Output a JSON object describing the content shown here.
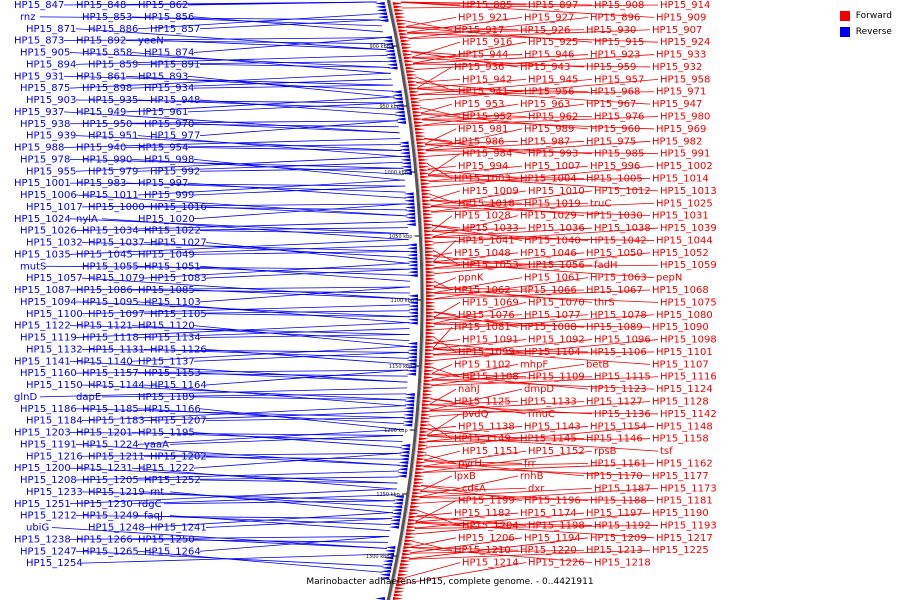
{
  "caption": "Marinobacter adhaerens HP15, complete genome. - 0..4421911",
  "legend": [
    {
      "label": "Forward",
      "color": "#ee0000"
    },
    {
      "label": "Reverse",
      "color": "#0000ee"
    }
  ],
  "scale_ticks": [
    "900 kbp",
    "950 kbp",
    "1000 kbp",
    "1050 kbp",
    "1100 kbp",
    "1150 kbp",
    "1200 kbp",
    "1250 kbp",
    "1300 kbp"
  ],
  "reverse_labels": [
    "HP15_847",
    "HP15_848",
    "HP15_862",
    "rnz",
    "HP15_853",
    "HP15_856",
    "HP15_871",
    "HP15_886",
    "HP15_857",
    "HP15_873",
    "HP15_892",
    "yeeN",
    "HP15_905",
    "HP15_858",
    "HP15_874",
    "HP15_894",
    "HP15_859",
    "HP15_891",
    "HP15_931",
    "HP15_861",
    "HP15_893",
    "HP15_875",
    "HP15_898",
    "HP15_934",
    "HP15_903",
    "HP15_935",
    "HP15_948",
    "HP15_937",
    "HP15_949",
    "HP15_961",
    "HP15_938",
    "HP15_950",
    "HP15_970",
    "HP15_939",
    "HP15_951",
    "HP15_977",
    "HP15_988",
    "HP15_940",
    "HP15_954",
    "HP15_978",
    "HP15_990",
    "HP15_998",
    "HP15_955",
    "HP15_979",
    "HP15_992",
    "HP15_1001",
    "HP15_983",
    "HP15_997",
    "HP15_1006",
    "HP15_1011",
    "HP15_999",
    "HP15_1017",
    "HP15_1000",
    "HP15_1016",
    "HP15_1024",
    "nylA",
    "HP15_1020",
    "HP15_1026",
    "HP15_1034",
    "HP15_1022",
    "HP15_1032",
    "HP15_1037",
    "HP15_1027",
    "HP15_1035",
    "HP15_1045",
    "HP15_1049",
    "mutS",
    "HP15_1055",
    "HP15_1051",
    "HP15_1057",
    "HP15_1079",
    "HP15_1083",
    "HP15_1087",
    "HP15_1086",
    "HP15_1085",
    "HP15_1094",
    "HP15_1095",
    "HP15_1103",
    "HP15_1100",
    "HP15_1097",
    "HP15_1105",
    "HP15_1122",
    "HP15_1121",
    "HP15_1120",
    "HP15_1119",
    "HP15_1118",
    "HP15_1134",
    "HP15_1132",
    "HP15_1131",
    "HP15_1126",
    "HP15_1141",
    "HP15_1140",
    "HP15_1137",
    "HP15_1160",
    "HP15_1157",
    "HP15_1153",
    "HP15_1150",
    "HP15_1144",
    "HP15_1164",
    "glnD",
    "dapE",
    "HP15_1189",
    "HP15_1186",
    "HP15_1185",
    "HP15_1166",
    "HP15_1184",
    "HP15_1183",
    "HP15_1207",
    "HP15_1203",
    "HP15_1201",
    "HP15_1195",
    "HP15_1191",
    "HP15_1224",
    "yaaA",
    "HP15_1216",
    "HP15_1211",
    "HP15_1202",
    "HP15_1200",
    "HP15_1231",
    "HP15_1222",
    "HP15_1208",
    "HP15_1205",
    "HP15_1252",
    "HP15_1233",
    "HP15_1219",
    "rnt",
    "HP15_1251",
    "HP15_1230",
    "rdgC",
    "HP15_1212",
    "HP15_1249",
    "faqJ",
    "ubiG",
    "HP15_1248",
    "HP15_1241",
    "HP15_1238",
    "HP15_1266",
    "HP15_1250",
    "HP15_1247",
    "HP15_1265",
    "HP15_1264",
    "HP15_1254"
  ],
  "forward_labels": [
    "HP15_885",
    "HP15_897",
    "HP15_908",
    "HP15_914",
    "HP15_921",
    "HP15_927",
    "HP15_896",
    "HP15_909",
    "HP15_917",
    "HP15_926",
    "HP15_930",
    "HP15_907",
    "HP15_916",
    "HP15_925",
    "HP15_915",
    "HP15_924",
    "HP15_944",
    "HP15_946",
    "HP15_923",
    "HP15_933",
    "HP15_936",
    "HP15_943",
    "HP15_959",
    "HP15_932",
    "HP15_942",
    "HP15_945",
    "HP15_957",
    "HP15_958",
    "HP15_941",
    "HP15_956",
    "HP15_968",
    "HP15_971",
    "HP15_953",
    "HP15_963",
    "HP15_967",
    "HP15_947",
    "HP15_952",
    "HP15_962",
    "HP15_976",
    "HP15_980",
    "HP15_981",
    "HP15_989",
    "HP15_960",
    "HP15_969",
    "HP15_986",
    "HP15_987",
    "HP15_975",
    "HP15_982",
    "HP15_984",
    "HP15_993",
    "HP15_985",
    "HP15_991",
    "HP15_994",
    "HP15_1007",
    "HP15_996",
    "HP15_1002",
    "HP15_1003",
    "HP15_1004",
    "HP15_1005",
    "HP15_1014",
    "HP15_1009",
    "HP15_1010",
    "HP15_1012",
    "HP15_1013",
    "HP15_1018",
    "HP15_1019",
    "truC",
    "HP15_1025",
    "HP15_1028",
    "HP15_1029",
    "HP15_1030",
    "HP15_1031",
    "HP15_1033",
    "HP15_1036",
    "HP15_1038",
    "HP15_1039",
    "HP15_1041",
    "HP15_1040",
    "HP15_1042",
    "HP15_1044",
    "HP15_1048",
    "HP15_1046",
    "HP15_1050",
    "HP15_1052",
    "HP15_1053",
    "HP15_1056",
    "fadH",
    "HP15_1059",
    "ppnK",
    "HP15_1061",
    "HP15_1063",
    "pepN",
    "HP15_1062",
    "HP15_1066",
    "HP15_1067",
    "HP15_1068",
    "HP15_1069",
    "HP15_1070",
    "thrS",
    "HP15_1075",
    "HP15_1076",
    "HP15_1077",
    "HP15_1078",
    "HP15_1080",
    "HP15_1081",
    "HP15_1088",
    "HP15_1089",
    "HP15_1090",
    "HP15_1091",
    "HP15_1092",
    "HP15_1096",
    "HP15_1098",
    "HP15_1099",
    "HP15_1104",
    "HP15_1106",
    "HP15_1101",
    "HP15_1102",
    "mhpF",
    "betB",
    "HP15_1107",
    "HP15_1108",
    "HP15_1109",
    "HP15_1115",
    "HP15_1116",
    "nahJ",
    "dmpD",
    "HP15_1123",
    "HP15_1124",
    "HP15_1125",
    "HP15_1133",
    "HP15_1127",
    "HP15_1128",
    "pvdQ",
    "rmuC",
    "HP15_1136",
    "HP15_1142",
    "HP15_1138",
    "HP15_1143",
    "HP15_1154",
    "HP15_1148",
    "HP15_1149",
    "HP15_1145",
    "HP15_1146",
    "HP15_1158",
    "HP15_1151",
    "HP15_1152",
    "rpsB",
    "tsf",
    "pyrH",
    "frr",
    "HP15_1161",
    "HP15_1162",
    "lpxB",
    "rnhB",
    "HP15_1170",
    "HP15_1177",
    "cdsA",
    "dxr",
    "HP15_1187",
    "HP15_1173",
    "HP15_1199",
    "HP15_1196",
    "HP15_1188",
    "HP15_1181",
    "HP15_1182",
    "HP15_1174",
    "HP15_1197",
    "HP15_1190",
    "HP15_1204",
    "HP15_1198",
    "HP15_1192",
    "HP15_1193",
    "HP15_1206",
    "HP15_1194",
    "HP15_1209",
    "HP15_1217",
    "HP15_1210",
    "HP15_1220",
    "HP15_1213",
    "HP15_1225",
    "HP15_1214",
    "HP15_1226",
    "HP15_1218"
  ]
}
